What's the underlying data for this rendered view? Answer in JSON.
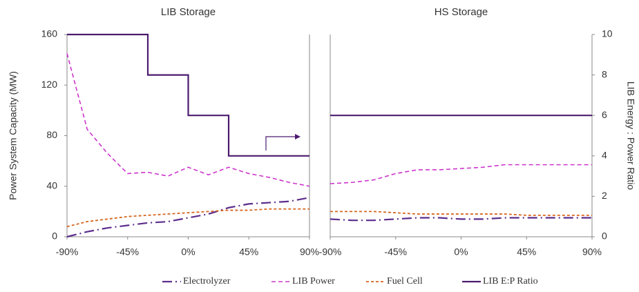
{
  "chart_data": [
    {
      "type": "line",
      "title": "LIB Storage",
      "ylabel": "Power System Capacity (MW)",
      "legend": "bottom",
      "x": [
        -90,
        -75,
        -60,
        -45,
        -30,
        -15,
        0,
        15,
        30,
        45,
        60,
        75,
        90
      ],
      "xlim": [
        -90,
        90
      ],
      "xticks": [
        {
          "value": -90,
          "label": "-90%"
        },
        {
          "value": -45,
          "label": "-45%"
        },
        {
          "value": 0,
          "label": "0%"
        },
        {
          "value": 45,
          "label": "45%"
        },
        {
          "value": 90,
          "label": "90%"
        }
      ],
      "ylim": [
        0,
        160
      ],
      "yticks": [
        0,
        40,
        80,
        120,
        160
      ],
      "y2lim": [
        0,
        10
      ],
      "series": [
        {
          "name": "Electrolyzer",
          "color": "#5b2c8c",
          "values": [
            0,
            4,
            7,
            9,
            11,
            12,
            15,
            18,
            23,
            26,
            27,
            28,
            31
          ]
        },
        {
          "name": "LIB Power",
          "color": "#cc33cc",
          "values": [
            145,
            85,
            66,
            50,
            51,
            48,
            55,
            49,
            55,
            50,
            47,
            43,
            40
          ]
        },
        {
          "name": "Fuel Cell",
          "color": "#d4661f",
          "values": [
            8,
            12,
            14,
            16,
            17,
            18,
            19,
            20,
            21,
            21,
            22,
            22,
            22
          ]
        },
        {
          "name": "LIB E:P Ratio",
          "color": "#4b1a6e",
          "axis": "y2",
          "x": [
            -90,
            -30,
            -30,
            0,
            0,
            30,
            30,
            90
          ],
          "values": [
            10,
            10,
            8,
            8,
            6,
            6,
            4,
            4
          ]
        }
      ]
    },
    {
      "type": "line",
      "title": "HS Storage",
      "y2label": "LIB Energy : Power Ratio",
      "x": [
        -90,
        -75,
        -60,
        -45,
        -30,
        -15,
        0,
        15,
        30,
        45,
        60,
        75,
        90
      ],
      "xlim": [
        -90,
        90
      ],
      "xticks": [
        {
          "value": -90,
          "label": "-90%"
        },
        {
          "value": -45,
          "label": "-45%"
        },
        {
          "value": 0,
          "label": "0%"
        },
        {
          "value": 45,
          "label": "45%"
        },
        {
          "value": 90,
          "label": "90%"
        }
      ],
      "ylim": [
        0,
        160
      ],
      "y2lim": [
        0,
        10
      ],
      "y2ticks": [
        0,
        2,
        4,
        6,
        8,
        10
      ],
      "series": [
        {
          "name": "Electrolyzer",
          "color": "#5b2c8c",
          "values": [
            14,
            13,
            13,
            14,
            15,
            15,
            14,
            14,
            15,
            15,
            15,
            15,
            15
          ]
        },
        {
          "name": "LIB Power",
          "color": "#cc33cc",
          "values": [
            42,
            43,
            45,
            50,
            53,
            53,
            54,
            55,
            57,
            57,
            57,
            57,
            57
          ]
        },
        {
          "name": "Fuel Cell",
          "color": "#d4661f",
          "values": [
            20,
            20,
            20,
            19,
            18,
            18,
            18,
            18,
            18,
            17,
            17,
            17,
            17
          ]
        },
        {
          "name": "LIB E:P Ratio",
          "color": "#4b1a6e",
          "axis": "y2",
          "x": [
            -90,
            90
          ],
          "values": [
            6,
            6
          ]
        }
      ]
    }
  ]
}
